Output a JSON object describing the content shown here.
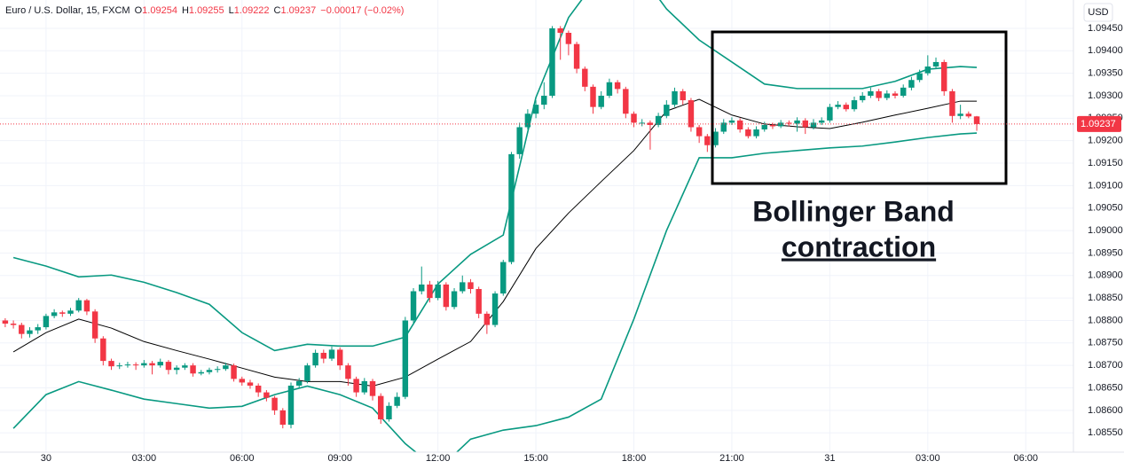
{
  "chart_data": {
    "type": "candlestick",
    "title": "Euro / U.S. Dollar, 15, FXCM",
    "ohlc": [
      {
        "label": "O",
        "value": 1.09254
      },
      {
        "label": "H",
        "value": 1.09255
      },
      {
        "label": "L",
        "value": 1.09222
      },
      {
        "label": "C",
        "value": 1.09237
      }
    ],
    "change_label": "−0.00017 (−0.02%)",
    "currency": "USD",
    "last_price": 1.09237,
    "annotation": [
      "Bollinger Band",
      "contraction"
    ],
    "up_color": "#089981",
    "down_color": "#f23645",
    "grid": true,
    "xlim": [
      -1.41,
      31.46
    ],
    "ylim": [
      1.08507,
      1.09513
    ],
    "xticks": [
      {
        "value": 0,
        "label": "30"
      },
      {
        "value": 3,
        "label": "03:00"
      },
      {
        "value": 6,
        "label": "06:00"
      },
      {
        "value": 9,
        "label": "09:00"
      },
      {
        "value": 12,
        "label": "12:00"
      },
      {
        "value": 15,
        "label": "15:00"
      },
      {
        "value": 18,
        "label": "18:00"
      },
      {
        "value": 21,
        "label": "21:00"
      },
      {
        "value": 24,
        "label": "31"
      },
      {
        "value": 27,
        "label": "03:00"
      },
      {
        "value": 30,
        "label": "06:00"
      }
    ],
    "yticks": [
      {
        "value": 1.0855,
        "label": "1.08550"
      },
      {
        "value": 1.086,
        "label": "1.08600"
      },
      {
        "value": 1.0865,
        "label": "1.08650"
      },
      {
        "value": 1.087,
        "label": "1.08700"
      },
      {
        "value": 1.0875,
        "label": "1.08750"
      },
      {
        "value": 1.088,
        "label": "1.08800"
      },
      {
        "value": 1.0885,
        "label": "1.08850"
      },
      {
        "value": 1.089,
        "label": "1.08900"
      },
      {
        "value": 1.0895,
        "label": "1.08950"
      },
      {
        "value": 1.09,
        "label": "1.09000"
      },
      {
        "value": 1.0905,
        "label": "1.09050"
      },
      {
        "value": 1.091,
        "label": "1.09100"
      },
      {
        "value": 1.0915,
        "label": "1.09150"
      },
      {
        "value": 1.092,
        "label": "1.09200"
      },
      {
        "value": 1.0925,
        "label": "1.09250"
      },
      {
        "value": 1.093,
        "label": "1.09300"
      },
      {
        "value": 1.0935,
        "label": "1.09350"
      },
      {
        "value": 1.094,
        "label": "1.09400"
      },
      {
        "value": 1.0945,
        "label": "1.09450"
      }
    ],
    "x": [
      -1.25,
      -1,
      -0.75,
      -0.5,
      -0.25,
      0,
      0.25,
      0.5,
      0.75,
      1,
      1.25,
      1.5,
      1.75,
      2,
      2.25,
      2.5,
      2.75,
      3,
      3.25,
      3.5,
      3.75,
      4,
      4.25,
      4.5,
      4.75,
      5,
      5.25,
      5.5,
      5.75,
      6,
      6.25,
      6.5,
      6.75,
      7,
      7.25,
      7.5,
      7.75,
      8,
      8.25,
      8.5,
      8.75,
      9,
      9.25,
      9.5,
      9.75,
      10,
      10.25,
      10.5,
      10.75,
      11,
      11.25,
      11.5,
      11.75,
      12,
      12.25,
      12.5,
      12.75,
      13,
      13.25,
      13.5,
      13.75,
      14,
      14.25,
      14.5,
      14.75,
      15,
      15.25,
      15.5,
      15.75,
      16,
      16.25,
      16.5,
      16.75,
      17,
      17.25,
      17.5,
      17.75,
      18,
      18.25,
      18.5,
      18.75,
      19,
      19.25,
      19.5,
      19.75,
      20,
      20.25,
      20.5,
      20.75,
      21,
      21.25,
      21.5,
      21.75,
      22,
      22.25,
      22.5,
      22.75,
      23,
      23.25,
      23.5,
      23.75,
      24,
      24.25,
      24.5,
      24.75,
      25,
      25.25,
      25.5,
      25.75,
      26,
      26.25,
      26.5,
      26.75,
      27,
      27.25,
      27.5,
      27.75,
      28,
      28.25,
      28.5
    ],
    "open": [
      1.088,
      1.08793,
      1.0879,
      1.0877,
      1.08778,
      1.08785,
      1.0881,
      1.08818,
      1.08815,
      1.08822,
      1.08845,
      1.0882,
      1.0876,
      1.0871,
      1.08698,
      1.087,
      1.08702,
      1.087,
      1.08705,
      1.087,
      1.08708,
      1.0869,
      1.08695,
      1.087,
      1.08682,
      1.08685,
      1.0869,
      1.08692,
      1.087,
      1.0867,
      1.08662,
      1.08655,
      1.0864,
      1.08628,
      1.086,
      1.08568,
      1.08655,
      1.08665,
      1.087,
      1.08728,
      1.08715,
      1.08735,
      1.087,
      1.0867,
      1.0864,
      1.08665,
      1.08632,
      1.0858,
      1.0861,
      1.0863,
      1.088,
      1.08865,
      1.0888,
      1.0885,
      1.0888,
      1.0883,
      1.08865,
      1.08885,
      1.0887,
      1.08815,
      1.0879,
      1.0886,
      1.0893,
      1.0917,
      1.0923,
      1.0926,
      1.0928,
      1.093,
      1.0945,
      1.0944,
      1.09415,
      1.0936,
      1.0932,
      1.09275,
      1.093,
      1.0933,
      1.09315,
      1.0926,
      1.0924,
      1.0924,
      1.09235,
      1.09255,
      1.0928,
      1.0931,
      1.0929,
      1.0923,
      1.0921,
      1.0919,
      1.0922,
      1.0924,
      1.09245,
      1.09225,
      1.0921,
      1.09225,
      1.09235,
      1.09232,
      1.0924,
      1.09238,
      1.09245,
      1.0923,
      1.0924,
      1.09245,
      1.09275,
      1.0928,
      1.0927,
      1.0929,
      1.093,
      1.0931,
      1.09295,
      1.09305,
      1.093,
      1.09318,
      1.09335,
      1.0935,
      1.09365,
      1.09375,
      1.0931,
      1.09255,
      1.0926,
      1.09254
    ],
    "high": [
      1.08805,
      1.088,
      1.08795,
      1.08785,
      1.08792,
      1.08815,
      1.08825,
      1.08822,
      1.08828,
      1.0885,
      1.08848,
      1.08825,
      1.08765,
      1.08715,
      1.08706,
      1.08708,
      1.08707,
      1.08712,
      1.0871,
      1.08715,
      1.08712,
      1.087,
      1.08705,
      1.08705,
      1.0869,
      1.08695,
      1.08698,
      1.08706,
      1.08704,
      1.08675,
      1.08668,
      1.0866,
      1.08645,
      1.08632,
      1.08605,
      1.08662,
      1.08672,
      1.08705,
      1.08735,
      1.08735,
      1.08742,
      1.0874,
      1.08705,
      1.08675,
      1.08672,
      1.0867,
      1.08638,
      1.08618,
      1.0864,
      1.08808,
      1.08872,
      1.0892,
      1.08888,
      1.08888,
      1.08885,
      1.08872,
      1.089,
      1.08892,
      1.08875,
      1.0882,
      1.08865,
      1.08935,
      1.09175,
      1.0924,
      1.0927,
      1.0929,
      1.0933,
      1.09455,
      1.09455,
      1.09445,
      1.0942,
      1.09365,
      1.09325,
      1.0931,
      1.09338,
      1.09335,
      1.0932,
      1.09265,
      1.09248,
      1.09245,
      1.09262,
      1.0929,
      1.09318,
      1.09315,
      1.09295,
      1.09235,
      1.09215,
      1.09228,
      1.09248,
      1.09252,
      1.0925,
      1.0923,
      1.09232,
      1.09242,
      1.0924,
      1.09246,
      1.09245,
      1.09252,
      1.0925,
      1.09248,
      1.09252,
      1.09282,
      1.09288,
      1.09285,
      1.09298,
      1.09308,
      1.09318,
      1.09315,
      1.09312,
      1.0931,
      1.09325,
      1.09342,
      1.09358,
      1.0939,
      1.09385,
      1.0938,
      1.09315,
      1.0928,
      1.09265,
      1.09255
    ],
    "low": [
      1.08785,
      1.08782,
      1.0876,
      1.08762,
      1.0877,
      1.0878,
      1.08805,
      1.08808,
      1.0881,
      1.08818,
      1.08812,
      1.0875,
      1.087,
      1.0869,
      1.08692,
      1.08695,
      1.0869,
      1.08695,
      1.0868,
      1.08695,
      1.0868,
      1.0868,
      1.0869,
      1.08675,
      1.08678,
      1.0868,
      1.08684,
      1.08688,
      1.08664,
      1.08655,
      1.08648,
      1.0863,
      1.0862,
      1.0859,
      1.0856,
      1.0856,
      1.0865,
      1.0866,
      1.08695,
      1.08705,
      1.0871,
      1.0869,
      1.08655,
      1.0863,
      1.08635,
      1.08622,
      1.0857,
      1.08575,
      1.08605,
      1.08625,
      1.08795,
      1.08858,
      1.0884,
      1.08845,
      1.08822,
      1.08825,
      1.0886,
      1.0886,
      1.08805,
      1.0877,
      1.08785,
      1.08855,
      1.08925,
      1.0916,
      1.09225,
      1.0925,
      1.0927,
      1.09295,
      1.0938,
      1.0939,
      1.0935,
      1.0931,
      1.0926,
      1.0927,
      1.09295,
      1.09305,
      1.0925,
      1.0923,
      1.09232,
      1.0918,
      1.0923,
      1.0925,
      1.09275,
      1.0928,
      1.0922,
      1.09195,
      1.09175,
      1.09185,
      1.09215,
      1.09235,
      1.09218,
      1.09205,
      1.09205,
      1.0922,
      1.09226,
      1.09228,
      1.09232,
      1.0922,
      1.09215,
      1.09225,
      1.09235,
      1.0924,
      1.0927,
      1.09265,
      1.09265,
      1.09285,
      1.09295,
      1.09288,
      1.0929,
      1.09294,
      1.09296,
      1.09312,
      1.0933,
      1.09345,
      1.0936,
      1.093,
      1.0924,
      1.09248,
      1.0925,
      1.09222
    ],
    "close": [
      1.08793,
      1.0879,
      1.0877,
      1.08778,
      1.08785,
      1.0881,
      1.08818,
      1.08815,
      1.08822,
      1.08845,
      1.0882,
      1.0876,
      1.0871,
      1.08698,
      1.087,
      1.08702,
      1.087,
      1.08705,
      1.087,
      1.08708,
      1.0869,
      1.08695,
      1.087,
      1.08682,
      1.08685,
      1.0869,
      1.08692,
      1.087,
      1.0867,
      1.08662,
      1.08655,
      1.0864,
      1.08628,
      1.086,
      1.08568,
      1.08655,
      1.08665,
      1.087,
      1.08728,
      1.08715,
      1.08735,
      1.087,
      1.0867,
      1.0864,
      1.08665,
      1.08632,
      1.0858,
      1.0861,
      1.0863,
      1.088,
      1.08865,
      1.0888,
      1.0885,
      1.0888,
      1.0883,
      1.08865,
      1.08885,
      1.0887,
      1.08815,
      1.0879,
      1.0886,
      1.0893,
      1.0917,
      1.0923,
      1.0926,
      1.0928,
      1.093,
      1.0945,
      1.0944,
      1.09415,
      1.0936,
      1.0932,
      1.09275,
      1.093,
      1.0933,
      1.09315,
      1.0926,
      1.0924,
      1.0924,
      1.09235,
      1.09255,
      1.0928,
      1.0931,
      1.0929,
      1.0923,
      1.0921,
      1.0919,
      1.0922,
      1.0924,
      1.09245,
      1.09225,
      1.0921,
      1.09225,
      1.09235,
      1.09232,
      1.0924,
      1.09238,
      1.09245,
      1.0923,
      1.0924,
      1.09245,
      1.09275,
      1.0928,
      1.0927,
      1.0929,
      1.093,
      1.0931,
      1.09295,
      1.09305,
      1.093,
      1.09318,
      1.09335,
      1.0935,
      1.09365,
      1.09375,
      1.0931,
      1.09255,
      1.0926,
      1.09254,
      1.09237
    ],
    "bands": [
      {
        "color": "#089981",
        "x": [
          -1,
          0,
          1,
          2,
          3,
          4,
          5,
          6,
          7,
          8,
          9,
          10,
          11,
          12,
          13,
          14,
          15,
          16,
          17,
          18,
          19,
          20,
          21,
          22,
          23,
          24,
          25,
          26,
          27,
          28,
          28.5
        ],
        "values": [
          1.0894,
          1.08921,
          1.08897,
          1.08901,
          1.08885,
          1.08862,
          1.08836,
          1.08773,
          1.08733,
          1.08747,
          1.08743,
          1.08743,
          1.08763,
          1.08881,
          1.08947,
          1.0899,
          1.09296,
          1.09474,
          1.09572,
          1.09592,
          1.09493,
          1.09424,
          1.09375,
          1.09326,
          1.09316,
          1.09316,
          1.09316,
          1.09332,
          1.09359,
          1.09365,
          1.09363
        ]
      },
      {
        "color": "#000000",
        "x": [
          -1,
          0,
          1,
          2,
          3,
          4,
          5,
          6,
          7,
          8,
          9,
          10,
          11,
          12,
          13,
          14,
          15,
          16,
          17,
          18,
          19,
          20,
          21,
          22,
          23,
          24,
          25,
          26,
          27,
          28,
          28.5
        ],
        "values": [
          1.0873,
          1.08773,
          1.08803,
          1.08783,
          1.08753,
          1.08733,
          1.08714,
          1.08694,
          1.08674,
          1.08664,
          1.08664,
          1.08654,
          1.08674,
          1.08714,
          1.08753,
          1.08842,
          1.0896,
          1.09039,
          1.09109,
          1.09178,
          1.09266,
          1.09292,
          1.09257,
          1.09237,
          1.09231,
          1.09227,
          1.09241,
          1.09257,
          1.09272,
          1.09288,
          1.09288
        ]
      },
      {
        "color": "#089981",
        "x": [
          -1,
          0,
          1,
          2,
          3,
          4,
          5,
          6,
          7,
          8,
          9,
          10,
          11,
          12,
          13,
          14,
          15,
          16,
          17,
          18,
          19,
          20,
          21,
          22,
          23,
          24,
          25,
          26,
          27,
          28,
          28.5
        ],
        "values": [
          1.0856,
          1.08635,
          1.08664,
          1.08645,
          1.08625,
          1.08615,
          1.08605,
          1.08609,
          1.08635,
          1.08654,
          1.08635,
          1.08605,
          1.08526,
          1.08467,
          1.08536,
          1.08556,
          1.08566,
          1.08585,
          1.08625,
          1.08803,
          1.09,
          1.09162,
          1.09162,
          1.09172,
          1.09178,
          1.09184,
          1.09188,
          1.09197,
          1.09207,
          1.09215,
          1.09217
        ]
      }
    ]
  }
}
